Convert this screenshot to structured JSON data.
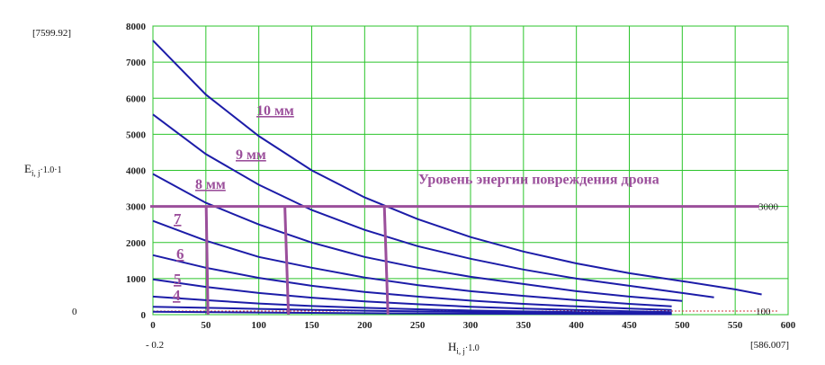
{
  "chart_data": {
    "type": "line",
    "y_axis_expression": {
      "main": "E",
      "subscript": "i, j",
      "suffix": "·1.0·1"
    },
    "x_axis_expression": {
      "main": "H",
      "subscript": "i, j",
      "suffix": "·1.0"
    },
    "y_corner_top": "7599.92",
    "y_corner_bottom": "0",
    "x_corner_left": "- 0.2",
    "x_corner_right": "586.007",
    "xlim": [
      0,
      600
    ],
    "ylim": [
      0,
      8000
    ],
    "x_ticks": [
      0,
      50,
      100,
      150,
      200,
      250,
      300,
      350,
      400,
      450,
      500,
      550,
      600
    ],
    "y_ticks": [
      0,
      1000,
      2000,
      3000,
      4000,
      5000,
      6000,
      7000,
      8000
    ],
    "grid": true,
    "series": [
      {
        "name": "10 мм",
        "x": [
          0,
          50,
          100,
          150,
          200,
          250,
          300,
          350,
          400,
          450,
          500,
          550,
          575
        ],
        "y": [
          7600,
          6100,
          4950,
          4000,
          3250,
          2650,
          2150,
          1750,
          1420,
          1150,
          930,
          700,
          560
        ]
      },
      {
        "name": "9 мм",
        "x": [
          0,
          50,
          100,
          150,
          200,
          250,
          300,
          350,
          400,
          450,
          500,
          530
        ],
        "y": [
          5550,
          4450,
          3600,
          2900,
          2350,
          1900,
          1550,
          1250,
          1000,
          800,
          600,
          480
        ]
      },
      {
        "name": "8 мм",
        "x": [
          0,
          50,
          100,
          150,
          200,
          250,
          300,
          350,
          400,
          450,
          500
        ],
        "y": [
          3900,
          3100,
          2500,
          2000,
          1600,
          1300,
          1050,
          850,
          650,
          500,
          380
        ]
      },
      {
        "name": "7",
        "x": [
          0,
          50,
          100,
          150,
          200,
          250,
          300,
          350,
          400,
          450,
          490
        ],
        "y": [
          2600,
          2050,
          1600,
          1300,
          1030,
          820,
          650,
          520,
          400,
          300,
          230
        ]
      },
      {
        "name": "6",
        "x": [
          0,
          50,
          100,
          150,
          200,
          250,
          300,
          350,
          400,
          450,
          490
        ],
        "y": [
          1650,
          1300,
          1020,
          800,
          630,
          500,
          390,
          300,
          230,
          170,
          130
        ]
      },
      {
        "name": "5",
        "x": [
          0,
          50,
          100,
          150,
          200,
          250,
          300,
          350,
          400,
          450,
          490
        ],
        "y": [
          980,
          770,
          600,
          470,
          370,
          290,
          220,
          170,
          130,
          95,
          70
        ]
      },
      {
        "name": "4",
        "x": [
          0,
          50,
          100,
          150,
          200,
          250,
          300,
          350,
          400,
          450,
          490
        ],
        "y": [
          500,
          400,
          310,
          240,
          190,
          150,
          115,
          90,
          70,
          50,
          40
        ]
      },
      {
        "name": "",
        "x": [
          0,
          100,
          200,
          300,
          400,
          490
        ],
        "y": [
          220,
          160,
          110,
          75,
          50,
          35
        ]
      },
      {
        "name": "",
        "x": [
          0,
          100,
          200,
          300,
          400,
          490
        ],
        "y": [
          80,
          60,
          40,
          28,
          18,
          12
        ]
      }
    ],
    "threshold": {
      "y": 3000,
      "label": "Уровень энергии повреждения дрона",
      "right_label": "3000"
    },
    "reference_line": {
      "y": 100,
      "right_label": "100"
    },
    "drop_lines_x": [
      52,
      128,
      222
    ],
    "annotation_color": "#9b4f9b",
    "curve_color": "#1c1ca8",
    "grid_color": "#2bc42b"
  }
}
